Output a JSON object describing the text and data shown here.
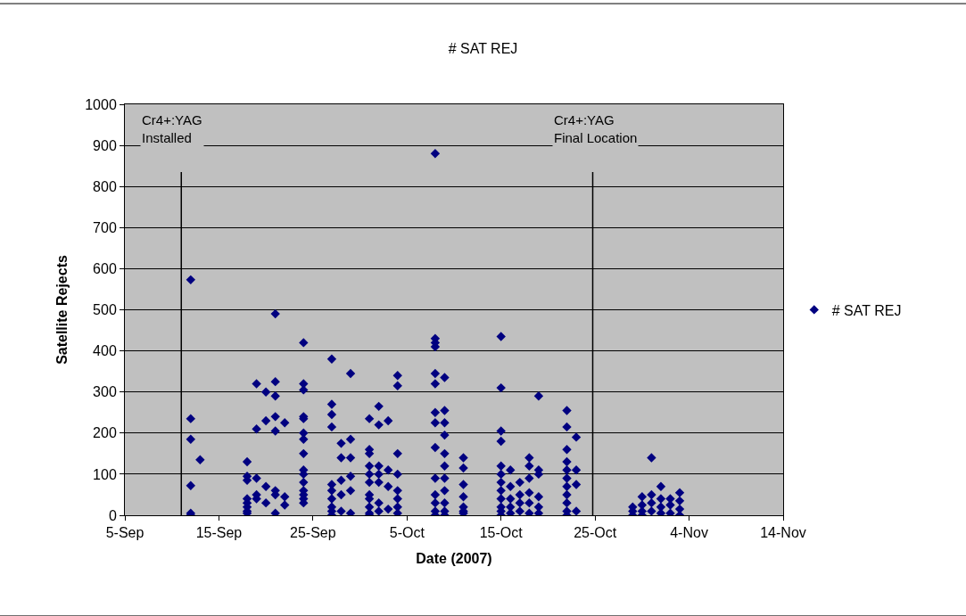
{
  "chart_data": {
    "type": "scatter",
    "title": "# SAT REJ",
    "xlabel": "Date (2007)",
    "ylabel": "Satellite Rejects",
    "x": [
      "2007-09-12",
      "2007-09-12",
      "2007-09-12",
      "2007-09-12",
      "2007-09-12",
      "2007-09-12",
      "2007-09-13",
      "2007-09-18",
      "2007-09-18",
      "2007-09-18",
      "2007-09-18",
      "2007-09-18",
      "2007-09-18",
      "2007-09-18",
      "2007-09-18",
      "2007-09-19",
      "2007-09-19",
      "2007-09-19",
      "2007-09-19",
      "2007-09-19",
      "2007-09-20",
      "2007-09-20",
      "2007-09-20",
      "2007-09-20",
      "2007-09-21",
      "2007-09-21",
      "2007-09-21",
      "2007-09-21",
      "2007-09-21",
      "2007-09-21",
      "2007-09-21",
      "2007-09-21",
      "2007-09-22",
      "2007-09-22",
      "2007-09-22",
      "2007-09-24",
      "2007-09-24",
      "2007-09-24",
      "2007-09-24",
      "2007-09-24",
      "2007-09-24",
      "2007-09-24",
      "2007-09-24",
      "2007-09-24",
      "2007-09-24",
      "2007-09-24",
      "2007-09-24",
      "2007-09-24",
      "2007-09-24",
      "2007-09-24",
      "2007-09-27",
      "2007-09-27",
      "2007-09-27",
      "2007-09-27",
      "2007-09-27",
      "2007-09-27",
      "2007-09-27",
      "2007-09-27",
      "2007-09-27",
      "2007-09-27",
      "2007-09-28",
      "2007-09-28",
      "2007-09-28",
      "2007-09-28",
      "2007-09-28",
      "2007-09-29",
      "2007-09-29",
      "2007-09-29",
      "2007-09-29",
      "2007-09-29",
      "2007-09-29",
      "2007-10-01",
      "2007-10-01",
      "2007-10-01",
      "2007-10-01",
      "2007-10-01",
      "2007-10-01",
      "2007-10-01",
      "2007-10-01",
      "2007-10-01",
      "2007-10-01",
      "2007-10-01",
      "2007-10-02",
      "2007-10-02",
      "2007-10-02",
      "2007-10-02",
      "2007-10-02",
      "2007-10-02",
      "2007-10-02",
      "2007-10-03",
      "2007-10-03",
      "2007-10-03",
      "2007-10-03",
      "2007-10-04",
      "2007-10-04",
      "2007-10-04",
      "2007-10-04",
      "2007-10-04",
      "2007-10-04",
      "2007-10-04",
      "2007-10-04",
      "2007-10-08",
      "2007-10-08",
      "2007-10-08",
      "2007-10-08",
      "2007-10-08",
      "2007-10-08",
      "2007-10-08",
      "2007-10-08",
      "2007-10-08",
      "2007-10-08",
      "2007-10-08",
      "2007-10-08",
      "2007-10-08",
      "2007-10-08",
      "2007-10-09",
      "2007-10-09",
      "2007-10-09",
      "2007-10-09",
      "2007-10-09",
      "2007-10-09",
      "2007-10-09",
      "2007-10-09",
      "2007-10-09",
      "2007-10-09",
      "2007-10-09",
      "2007-10-11",
      "2007-10-11",
      "2007-10-11",
      "2007-10-11",
      "2007-10-11",
      "2007-10-11",
      "2007-10-11",
      "2007-10-15",
      "2007-10-15",
      "2007-10-15",
      "2007-10-15",
      "2007-10-15",
      "2007-10-15",
      "2007-10-15",
      "2007-10-15",
      "2007-10-15",
      "2007-10-15",
      "2007-10-15",
      "2007-10-15",
      "2007-10-16",
      "2007-10-16",
      "2007-10-16",
      "2007-10-16",
      "2007-10-16",
      "2007-10-17",
      "2007-10-17",
      "2007-10-17",
      "2007-10-17",
      "2007-10-18",
      "2007-10-18",
      "2007-10-18",
      "2007-10-18",
      "2007-10-18",
      "2007-10-18",
      "2007-10-19",
      "2007-10-19",
      "2007-10-19",
      "2007-10-19",
      "2007-10-19",
      "2007-10-19",
      "2007-10-22",
      "2007-10-22",
      "2007-10-22",
      "2007-10-22",
      "2007-10-22",
      "2007-10-22",
      "2007-10-22",
      "2007-10-22",
      "2007-10-22",
      "2007-10-22",
      "2007-10-22",
      "2007-10-23",
      "2007-10-23",
      "2007-10-23",
      "2007-10-23",
      "2007-10-29",
      "2007-10-29",
      "2007-10-29",
      "2007-10-30",
      "2007-10-30",
      "2007-10-30",
      "2007-10-30",
      "2007-10-31",
      "2007-10-31",
      "2007-10-31",
      "2007-10-31",
      "2007-11-01",
      "2007-11-01",
      "2007-11-01",
      "2007-11-01",
      "2007-11-02",
      "2007-11-02",
      "2007-11-02",
      "2007-11-03",
      "2007-11-03",
      "2007-11-03",
      "2007-11-03"
    ],
    "series": [
      {
        "name": "# SAT REJ",
        "color": "#000080",
        "values": [
          573,
          235,
          185,
          72,
          5,
          0,
          135,
          130,
          95,
          85,
          40,
          30,
          20,
          10,
          5,
          320,
          210,
          90,
          50,
          40,
          300,
          230,
          70,
          30,
          490,
          325,
          290,
          240,
          205,
          60,
          50,
          5,
          225,
          45,
          25,
          420,
          320,
          305,
          240,
          235,
          200,
          185,
          150,
          110,
          100,
          80,
          60,
          50,
          40,
          30,
          380,
          270,
          245,
          215,
          75,
          60,
          40,
          20,
          10,
          0,
          175,
          140,
          85,
          50,
          10,
          345,
          185,
          140,
          95,
          60,
          5,
          235,
          160,
          150,
          120,
          100,
          80,
          50,
          40,
          20,
          5,
          0,
          265,
          220,
          120,
          100,
          80,
          30,
          10,
          230,
          110,
          70,
          15,
          340,
          315,
          150,
          100,
          60,
          40,
          20,
          5,
          880,
          430,
          420,
          410,
          345,
          320,
          250,
          225,
          165,
          90,
          50,
          30,
          10,
          0,
          335,
          255,
          225,
          195,
          150,
          120,
          90,
          60,
          30,
          10,
          0,
          140,
          115,
          75,
          45,
          20,
          10,
          5,
          435,
          310,
          205,
          180,
          120,
          100,
          80,
          60,
          40,
          20,
          10,
          0,
          110,
          70,
          40,
          20,
          5,
          80,
          50,
          30,
          10,
          140,
          120,
          90,
          55,
          30,
          5,
          290,
          110,
          100,
          45,
          20,
          5,
          255,
          215,
          160,
          130,
          110,
          90,
          70,
          50,
          30,
          10,
          0,
          190,
          110,
          75,
          10,
          20,
          10,
          0,
          45,
          25,
          10,
          0,
          140,
          50,
          30,
          10,
          70,
          40,
          20,
          5,
          40,
          25,
          5,
          55,
          35,
          15,
          0
        ]
      }
    ],
    "xlim": [
      "2007-09-05",
      "2007-11-14"
    ],
    "xticks": [
      {
        "value": "2007-09-05",
        "label": "5-Sep"
      },
      {
        "value": "2007-09-15",
        "label": "15-Sep"
      },
      {
        "value": "2007-09-25",
        "label": "25-Sep"
      },
      {
        "value": "2007-10-05",
        "label": "5-Oct"
      },
      {
        "value": "2007-10-15",
        "label": "15-Oct"
      },
      {
        "value": "2007-10-25",
        "label": "25-Oct"
      },
      {
        "value": "2007-11-04",
        "label": "4-Nov"
      },
      {
        "value": "2007-11-14",
        "label": "14-Nov"
      }
    ],
    "ylim": [
      0,
      1000
    ],
    "yticks": [
      0,
      100,
      200,
      300,
      400,
      500,
      600,
      700,
      800,
      900,
      1000
    ],
    "ref_lines": [
      {
        "axis": "x",
        "value": "2007-09-11",
        "label": "Cr4+:YAG\nInstalled",
        "color": "#000000"
      },
      {
        "axis": "x",
        "value": "2007-10-24T18:00",
        "label": "Cr4+:YAG\nFinal Location",
        "color": "#000000"
      }
    ],
    "grid": "y",
    "legend": "right",
    "marker": "diamond"
  }
}
